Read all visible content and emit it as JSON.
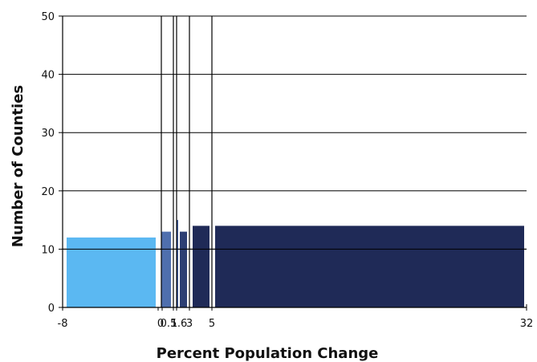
{
  "chart_data": {
    "type": "bar",
    "title": "",
    "xlabel": "Percent Population Change",
    "ylabel": "Number of Counties",
    "xlim": [
      -8,
      32
    ],
    "ylim": [
      0,
      50
    ],
    "y_ticks": [
      0,
      10,
      20,
      30,
      40,
      50
    ],
    "x_ticks": [
      {
        "value": -8,
        "label": "-8"
      },
      {
        "value": 0,
        "label": "0"
      },
      {
        "value": 0.5,
        "label": "0.5"
      },
      {
        "value": 1,
        "label": "1"
      },
      {
        "value": 1.6,
        "label": "1.6"
      },
      {
        "value": 3,
        "label": "3"
      },
      {
        "value": 5,
        "label": "5"
      },
      {
        "value": 32,
        "label": "32"
      }
    ],
    "class_breaks": [
      0,
      1,
      1.6,
      3,
      5
    ],
    "bins": [
      {
        "from": -8,
        "to": 0,
        "count": 12,
        "color": "#5bb8f2"
      },
      {
        "from": 0,
        "to": 1,
        "count": 13,
        "color": "#4f6fae"
      },
      {
        "from": 1,
        "to": 1.6,
        "count": 15,
        "color": "#3f5a99"
      },
      {
        "from": 1.6,
        "to": 3,
        "count": 13,
        "color": "#2d3f73"
      },
      {
        "from": 3,
        "to": 5,
        "count": 14,
        "color": "#1f2a57"
      },
      {
        "from": 5,
        "to": 32,
        "count": 14,
        "color": "#1f2a57"
      }
    ],
    "grid": true,
    "legend": "none"
  }
}
